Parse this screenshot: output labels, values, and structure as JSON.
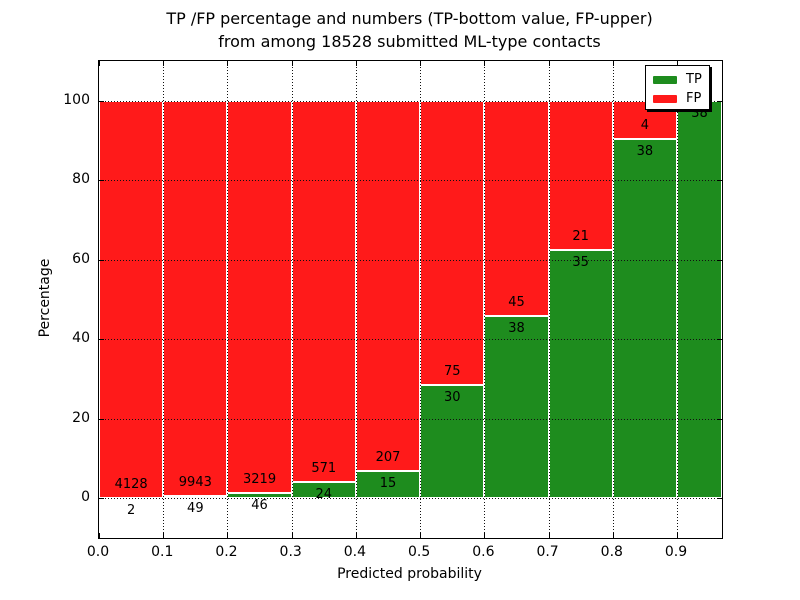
{
  "figure": {
    "title_line1": "TP /FP percentage and numbers (TP-bottom value, FP-upper)",
    "title_line2": "from among 18528 submitted ML-type contacts",
    "background_color": "#ffffff"
  },
  "chart_data": {
    "type": "bar",
    "stacked": true,
    "orientation": "vertical",
    "title": "TP /FP percentage and numbers (TP-bottom value, FP-upper)\nfrom among 18528 submitted ML-type contacts",
    "xlabel": "Predicted probability",
    "ylabel": "Percentage",
    "bin_starts": [
      0.0,
      0.1,
      0.2,
      0.3,
      0.4,
      0.5,
      0.6,
      0.7,
      0.8,
      0.9
    ],
    "bin_width": 0.1,
    "series": [
      {
        "name": "TP",
        "color": "#1e8c1e",
        "counts": [
          2,
          49,
          46,
          24,
          15,
          30,
          38,
          35,
          38,
          38
        ]
      },
      {
        "name": "FP",
        "color": "#ff1a1a",
        "counts": [
          4128,
          9943,
          3219,
          571,
          207,
          75,
          45,
          21,
          4,
          0
        ]
      }
    ],
    "tp_percent_of_bin": [
      0.05,
      0.49,
      1.41,
      4.03,
      6.76,
      28.57,
      45.78,
      62.5,
      90.48,
      100.0
    ],
    "bar_value_labels_note": "FP count printed just above the TP/FP boundary, TP count just below it",
    "xlim": [
      0.0,
      0.97
    ],
    "ylim": [
      -10,
      110
    ],
    "xtick_labels": [
      "0.0",
      "0.1",
      "0.2",
      "0.3",
      "0.4",
      "0.5",
      "0.6",
      "0.7",
      "0.8",
      "0.9"
    ],
    "yticks": [
      0,
      20,
      40,
      60,
      80,
      100
    ],
    "grid": "dotted, both axes",
    "bar_edge_color": "#ffffff",
    "legend": {
      "position": "upper right",
      "entries": [
        {
          "label": "TP",
          "color": "#1e8c1e"
        },
        {
          "label": "FP",
          "color": "#ff1a1a"
        }
      ]
    }
  }
}
